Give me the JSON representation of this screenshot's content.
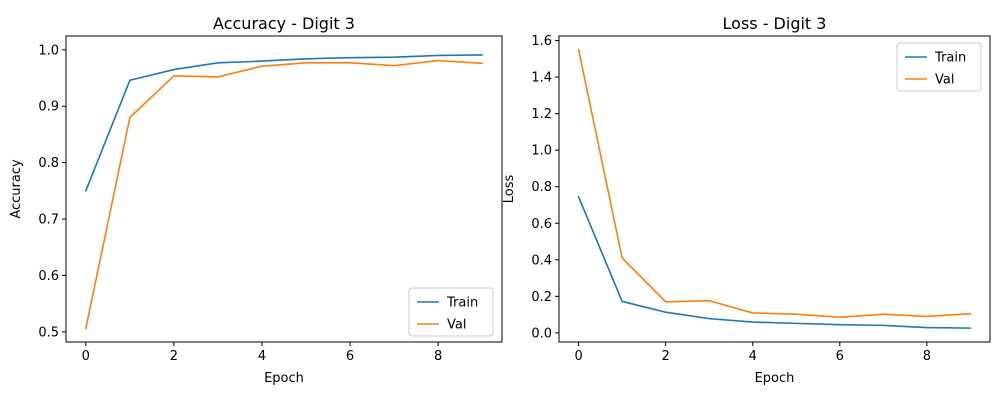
{
  "chart_data": [
    {
      "type": "line",
      "title": "Accuracy - Digit 3",
      "xlabel": "Epoch",
      "ylabel": "Accuracy",
      "xlim": [
        -0.45,
        9.45
      ],
      "ylim": [
        0.482,
        1.0245
      ],
      "x_ticks": [
        0,
        2,
        4,
        6,
        8
      ],
      "y_ticks": [
        0.5,
        0.6,
        0.7,
        0.8,
        0.9,
        1.0
      ],
      "y_tick_labels": [
        "0.5",
        "0.6",
        "0.7",
        "0.8",
        "0.9",
        "1.0"
      ],
      "legend_position": "bottom-right",
      "grid": false,
      "x": [
        0,
        1,
        2,
        3,
        4,
        5,
        6,
        7,
        8,
        9
      ],
      "series": [
        {
          "name": "Train",
          "color": "#1f77b4",
          "values": [
            0.75,
            0.946,
            0.965,
            0.977,
            0.98,
            0.984,
            0.986,
            0.987,
            0.99,
            0.991
          ]
        },
        {
          "name": "Val",
          "color": "#ff7f0e",
          "values": [
            0.506,
            0.88,
            0.954,
            0.952,
            0.971,
            0.977,
            0.977,
            0.972,
            0.981,
            0.976
          ]
        }
      ]
    },
    {
      "type": "line",
      "title": "Loss - Digit 3",
      "xlabel": "Epoch",
      "ylabel": "Loss",
      "xlim": [
        -0.45,
        9.45
      ],
      "ylim": [
        -0.05,
        1.625
      ],
      "x_ticks": [
        0,
        2,
        4,
        6,
        8
      ],
      "y_ticks": [
        0.0,
        0.2,
        0.4,
        0.6,
        0.8,
        1.0,
        1.2,
        1.4,
        1.6
      ],
      "y_tick_labels": [
        "0.0",
        "0.2",
        "0.4",
        "0.6",
        "0.8",
        "1.0",
        "1.2",
        "1.4",
        "1.6"
      ],
      "legend_position": "top-right",
      "grid": false,
      "x": [
        0,
        1,
        2,
        3,
        4,
        5,
        6,
        7,
        8,
        9
      ],
      "series": [
        {
          "name": "Train",
          "color": "#1f77b4",
          "values": [
            0.745,
            0.172,
            0.113,
            0.078,
            0.059,
            0.052,
            0.045,
            0.041,
            0.029,
            0.026
          ]
        },
        {
          "name": "Val",
          "color": "#ff7f0e",
          "values": [
            1.55,
            0.41,
            0.17,
            0.176,
            0.109,
            0.102,
            0.085,
            0.102,
            0.09,
            0.105
          ]
        }
      ]
    }
  ]
}
